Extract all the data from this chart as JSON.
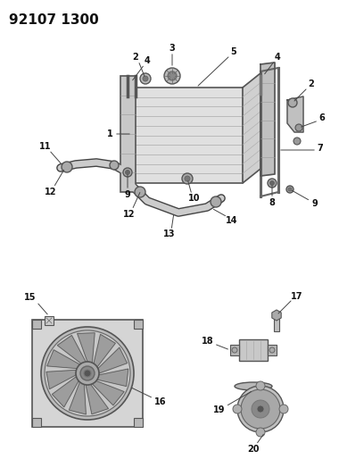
{
  "title": "92107 1300",
  "background_color": "#ffffff",
  "title_fontsize": 11,
  "title_fontweight": "bold"
}
